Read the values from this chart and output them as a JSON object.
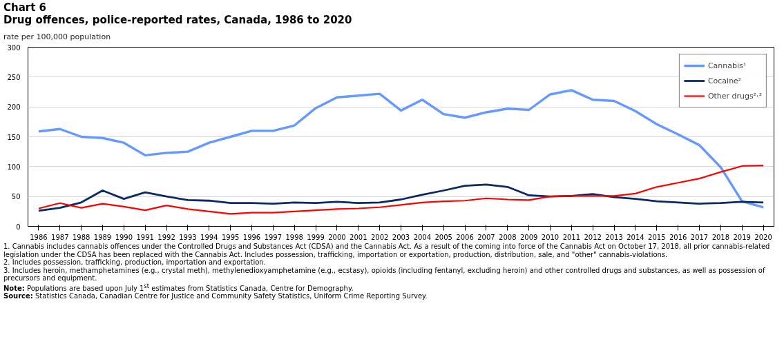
{
  "chart_data": {
    "type": "line",
    "title": "Chart 6",
    "subtitle": "Drug offences, police-reported rates, Canada, 1986 to 2020",
    "ylabel": "rate per 100,000 population",
    "categories": [
      "1986",
      "1987",
      "1988",
      "1989",
      "1990",
      "1991",
      "1992",
      "1993",
      "1994",
      "1995",
      "1996",
      "1997",
      "1998",
      "1999",
      "2000",
      "2001",
      "2002",
      "2003",
      "2004",
      "2005",
      "2006",
      "2007",
      "2008",
      "2009",
      "2010",
      "2011",
      "2012",
      "2013",
      "2014",
      "2015",
      "2016",
      "2017",
      "2018",
      "2019",
      "2020"
    ],
    "series": [
      {
        "name": "Cannabis¹",
        "color": "#6699ff",
        "values": [
          159,
          163,
          150,
          148,
          140,
          119,
          123,
          125,
          140,
          150,
          160,
          160,
          169,
          198,
          216,
          219,
          222,
          194,
          212,
          188,
          182,
          191,
          197,
          195,
          221,
          228,
          212,
          210,
          193,
          171,
          154,
          136,
          99,
          42,
          32
        ]
      },
      {
        "name": "Cocaine²",
        "color": "#0b2a63",
        "values": [
          26,
          31,
          40,
          60,
          46,
          57,
          50,
          44,
          43,
          39,
          39,
          38,
          40,
          39,
          41,
          39,
          40,
          45,
          53,
          60,
          68,
          70,
          66,
          52,
          50,
          51,
          54,
          49,
          46,
          42,
          40,
          38,
          39,
          41,
          40
        ]
      },
      {
        "name": "Other drugs²˒³",
        "color": "#ff0000",
        "values": [
          30,
          39,
          31,
          38,
          33,
          27,
          35,
          29,
          25,
          21,
          23,
          23,
          25,
          27,
          29,
          30,
          32,
          36,
          40,
          42,
          43,
          47,
          45,
          44,
          50,
          51,
          51,
          51,
          55,
          66,
          73,
          80,
          91,
          101,
          102
        ]
      }
    ],
    "ylim": [
      0,
      300
    ],
    "yticks": [
      0,
      50,
      100,
      150,
      200,
      250,
      300
    ],
    "grid": "y",
    "legend": "top right",
    "annotations": [
      "1. Cannabis includes cannabis offences under the Controlled Drugs and Substances Act (CDSA) and the Cannabis Act. As a result of the coming into force of the Cannabis Act on October 17, 2018, all prior cannabis-related legislation under the CDSA has been replaced with the Cannabis Act. Includes possession, trafficking, importation or exportation, production, distribution, sale, and \"other\" cannabis-violations.",
      "2. Includes possession, trafficking, production, importation and exportation.",
      "3. Includes heroin, methamphetamines (e.g., crystal meth), methylenedioxyamphetamine (e.g., ecstasy), opioids (including fentanyl, excluding heroin) and other controlled drugs and substances, as well as possession of precursors and equipment.",
      "Note: Populations are based upon July 1$^{st}$ estimates from Statistics Canada, Centre for Demography.",
      "Source: Statistics Canada, Canadian Centre for Justice and Community Safety Statistics, Uniform Crime Reporting Survey."
    ]
  }
}
